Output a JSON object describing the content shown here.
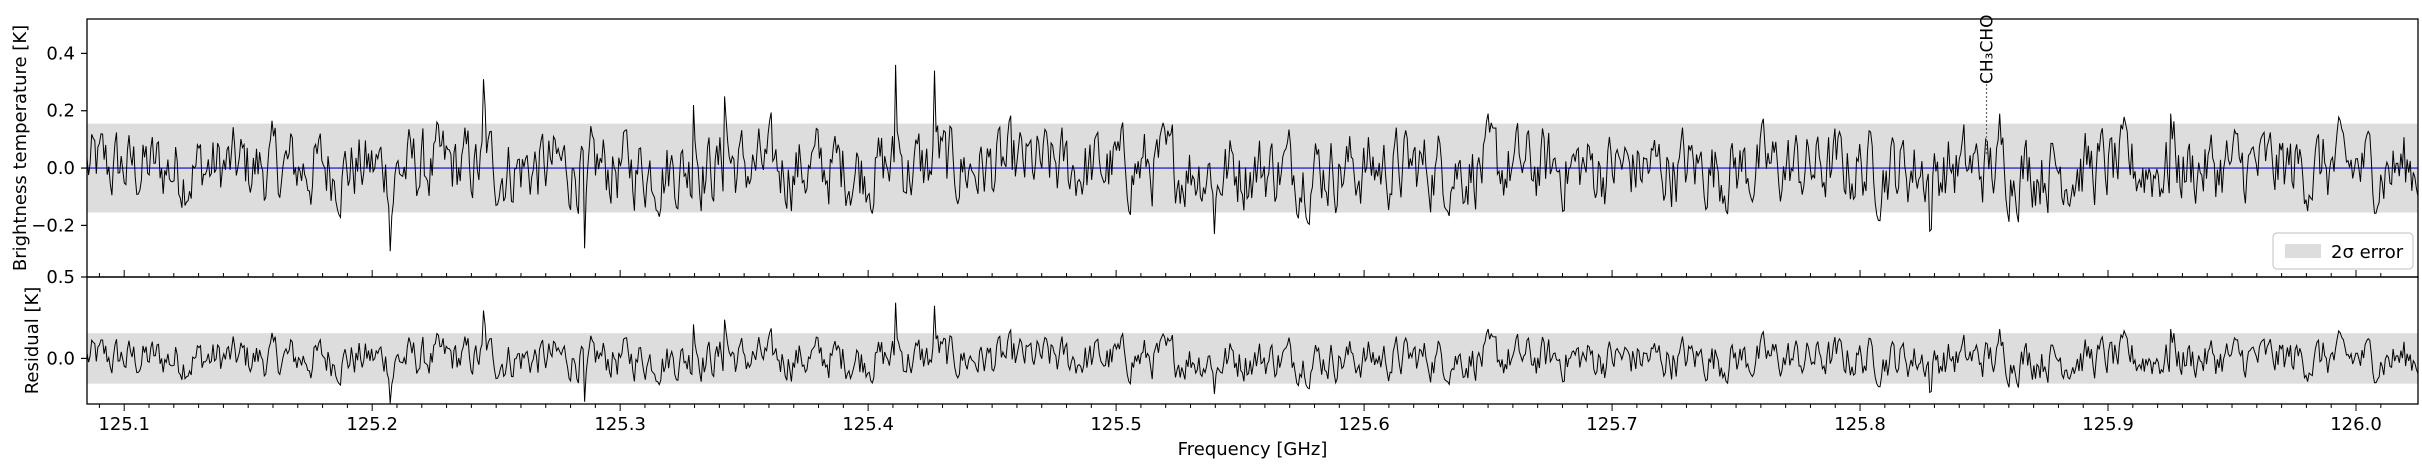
{
  "chart_data": [
    {
      "type": "line",
      "panel": "spectrum",
      "ylabel": "Brightness temperature [K]",
      "xlim": [
        125.085,
        126.025
      ],
      "ylim": [
        -0.38,
        0.52
      ],
      "y_ticks": [
        -0.2,
        0.0,
        0.2,
        0.4
      ],
      "y_tick_labels": [
        "−0.2",
        "0.0",
        "0.2",
        "0.4"
      ],
      "error_band": {
        "low": -0.155,
        "high": 0.155,
        "color": "#dddddd"
      },
      "model_line": {
        "y": 0.0,
        "color": "#2b2bd6"
      },
      "series_color": "#000000",
      "annotation": {
        "label": "CH₃CHO",
        "x": 125.851
      },
      "legend": {
        "label": "2σ error",
        "location": "lower right"
      },
      "grid": false
    },
    {
      "type": "line",
      "panel": "residual",
      "ylabel": "Residual [K]",
      "xlabel": "Frequency [GHz]",
      "xlim": [
        125.085,
        126.025
      ],
      "ylim": [
        -0.28,
        0.5
      ],
      "y_ticks": [
        0.0,
        0.5
      ],
      "y_tick_labels": [
        "0.0",
        "0.5"
      ],
      "x_ticks": [
        125.1,
        125.2,
        125.3,
        125.4,
        125.5,
        125.6,
        125.7,
        125.8,
        125.9,
        126.0
      ],
      "x_tick_labels": [
        "125.1",
        "125.2",
        "125.3",
        "125.4",
        "125.5",
        "125.6",
        "125.7",
        "125.8",
        "125.9",
        "126.0"
      ],
      "error_band": {
        "low": -0.155,
        "high": 0.155,
        "color": "#dddddd"
      },
      "series_color": "#000000",
      "grid": false
    }
  ]
}
